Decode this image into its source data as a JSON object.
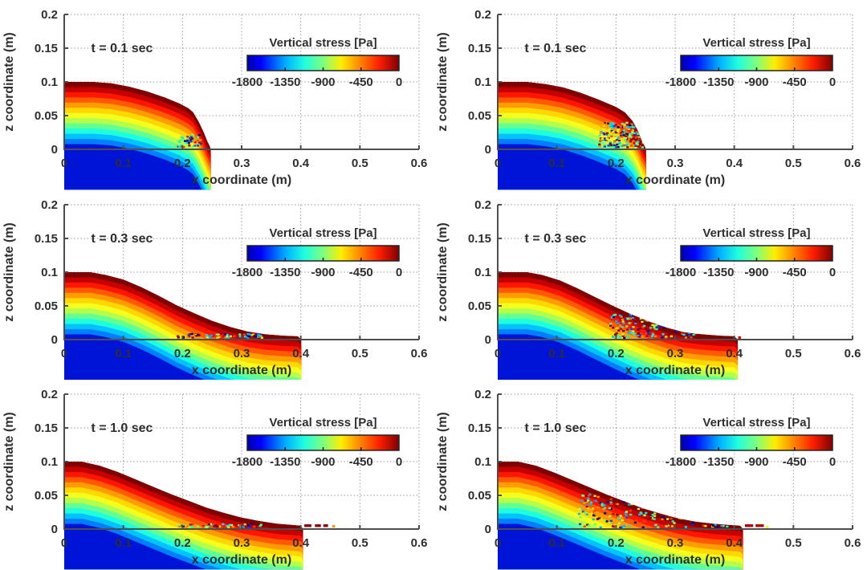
{
  "chart_data": {
    "type": "heatmap",
    "subtype": "sph-granular-collapse-vertical-stress-field",
    "layout": {
      "rows": 3,
      "cols": 2,
      "legend_position": "inside-top-right",
      "grid": "dotted"
    },
    "shared": {
      "xlabel": "x coordinate (m)",
      "ylabel": "z coordinate (m)",
      "xlim": [
        0,
        0.6
      ],
      "ylim": [
        0,
        0.2
      ],
      "xticks": [
        0,
        0.1,
        0.2,
        0.3,
        0.4,
        0.5,
        0.6
      ],
      "xtick_labels": [
        "0",
        "0.1",
        "0.2",
        "0.3",
        "0.4",
        "0.5",
        "0.6"
      ],
      "yticks": [
        0,
        0.05,
        0.1,
        0.15,
        0.2
      ],
      "ytick_labels": [
        "0",
        "0.05",
        "0.1",
        "0.15",
        "0.2"
      ],
      "colorbar": {
        "title": "Vertical stress [Pa]",
        "orientation": "horizontal",
        "colormap": "jet",
        "range_pa": [
          -1800,
          0
        ],
        "ticks": [
          -1800,
          -1350,
          -900,
          -450,
          0
        ],
        "tick_labels": [
          "-1800",
          "-1350",
          "-900",
          "-450",
          "0"
        ],
        "gradient_stops": [
          [
            0,
            "#0000aa"
          ],
          [
            0.09,
            "#0000ff"
          ],
          [
            0.26,
            "#00b4ff"
          ],
          [
            0.38,
            "#22ffdd"
          ],
          [
            0.5,
            "#7dff7d"
          ],
          [
            0.62,
            "#ffee00"
          ],
          [
            0.74,
            "#ff8800"
          ],
          [
            0.87,
            "#ff1e00"
          ],
          [
            1,
            "#7f0000"
          ]
        ]
      },
      "initial_pile_height_m": 0.1,
      "band_depth_m": 0.00769,
      "band_colors_surface_to_deep": [
        "#7f0000",
        "#c40000",
        "#ff1600",
        "#ff5a00",
        "#ff9c00",
        "#ffd800",
        "#f4ff1e",
        "#b4ff4b",
        "#64ff93",
        "#1effde",
        "#00c3ff",
        "#007eff",
        "#0014d8"
      ],
      "speckle_palette": [
        "#000090",
        "#0040ff",
        "#00b4ff",
        "#00ffd0",
        "#55ff7f",
        "#c8ff32",
        "#ffe800",
        "#ff9000",
        "#ff3c00",
        "#c00000",
        "#7f0000",
        "#00e8ff"
      ],
      "grid_color": "#9a9a9a",
      "axis_color": "#4d4d4d",
      "text_color": "#2e2e2e"
    },
    "panels": [
      {
        "id": "top-left",
        "row": 0,
        "col": 0,
        "time_label": "t = 0.1 sec",
        "time_s": 0.1,
        "surface_profile_m": [
          [
            0,
            0.1
          ],
          [
            0.05,
            0.1
          ],
          [
            0.08,
            0.098
          ],
          [
            0.11,
            0.093
          ],
          [
            0.14,
            0.086
          ],
          [
            0.17,
            0.077
          ],
          [
            0.195,
            0.068
          ],
          [
            0.21,
            0.061
          ],
          [
            0.218,
            0.055
          ],
          [
            0.228,
            0.04
          ],
          [
            0.236,
            0.025
          ],
          [
            0.242,
            0.012
          ],
          [
            0.246,
            0.005
          ],
          [
            0.248,
            0
          ]
        ],
        "runout_toe_m": 0.248,
        "noise": {
          "x0": 0.192,
          "x1": 0.232,
          "z0": 0.001,
          "z1": 0.02,
          "count": 55,
          "seed": 11
        },
        "tail_dashes": [],
        "extra_dots": []
      },
      {
        "id": "top-right",
        "row": 0,
        "col": 1,
        "time_label": "t = 0.1 sec",
        "time_s": 0.1,
        "surface_profile_m": [
          [
            0,
            0.1
          ],
          [
            0.05,
            0.1
          ],
          [
            0.08,
            0.097
          ],
          [
            0.11,
            0.092
          ],
          [
            0.14,
            0.084
          ],
          [
            0.17,
            0.074
          ],
          [
            0.2,
            0.063
          ],
          [
            0.215,
            0.055
          ],
          [
            0.228,
            0.042
          ],
          [
            0.238,
            0.026
          ],
          [
            0.244,
            0.012
          ],
          [
            0.249,
            0.004
          ],
          [
            0.251,
            0
          ]
        ],
        "runout_toe_m": 0.251,
        "noise": {
          "x0": 0.172,
          "x1": 0.247,
          "z0": 0.001,
          "z1": 0.04,
          "count": 200,
          "seed": 22
        },
        "tail_dashes": [],
        "extra_dots": []
      },
      {
        "id": "middle-left",
        "row": 1,
        "col": 0,
        "time_label": "t = 0.3 sec",
        "time_s": 0.3,
        "surface_profile_m": [
          [
            0,
            0.1
          ],
          [
            0.045,
            0.1
          ],
          [
            0.07,
            0.096
          ],
          [
            0.1,
            0.089
          ],
          [
            0.13,
            0.078
          ],
          [
            0.16,
            0.065
          ],
          [
            0.19,
            0.051
          ],
          [
            0.22,
            0.039
          ],
          [
            0.25,
            0.028
          ],
          [
            0.28,
            0.019
          ],
          [
            0.31,
            0.012
          ],
          [
            0.34,
            0.008
          ],
          [
            0.37,
            0.006
          ],
          [
            0.395,
            0.005
          ],
          [
            0.401,
            0
          ]
        ],
        "runout_toe_m": 0.401,
        "noise": {
          "x0": 0.19,
          "x1": 0.335,
          "z0": 0.001,
          "z1": 0.007,
          "count": 65,
          "seed": 33
        },
        "tail_dashes": [],
        "extra_dots": []
      },
      {
        "id": "middle-right",
        "row": 1,
        "col": 1,
        "time_label": "t = 0.3 sec",
        "time_s": 0.3,
        "surface_profile_m": [
          [
            0,
            0.1
          ],
          [
            0.05,
            0.1
          ],
          [
            0.075,
            0.096
          ],
          [
            0.105,
            0.088
          ],
          [
            0.135,
            0.076
          ],
          [
            0.165,
            0.063
          ],
          [
            0.195,
            0.05
          ],
          [
            0.225,
            0.038
          ],
          [
            0.255,
            0.027
          ],
          [
            0.285,
            0.018
          ],
          [
            0.315,
            0.011
          ],
          [
            0.345,
            0.008
          ],
          [
            0.375,
            0.006
          ],
          [
            0.4,
            0.005
          ],
          [
            0.406,
            0
          ]
        ],
        "runout_toe_m": 0.406,
        "noise": {
          "x0": 0.19,
          "x1": 0.335,
          "z0": 0.001,
          "z1": 0.036,
          "count": 210,
          "seed": 44
        },
        "tail_dashes": [],
        "extra_dots": [
          [
            0.409,
            0.003,
            "#cc1100"
          ]
        ]
      },
      {
        "id": "bottom-left",
        "row": 2,
        "col": 0,
        "time_label": "t = 1.0 sec",
        "time_s": 1.0,
        "surface_profile_m": [
          [
            0,
            0.1
          ],
          [
            0.03,
            0.1
          ],
          [
            0.06,
            0.094
          ],
          [
            0.09,
            0.085
          ],
          [
            0.12,
            0.074
          ],
          [
            0.15,
            0.063
          ],
          [
            0.18,
            0.052
          ],
          [
            0.21,
            0.042
          ],
          [
            0.24,
            0.032
          ],
          [
            0.27,
            0.024
          ],
          [
            0.3,
            0.017
          ],
          [
            0.33,
            0.012
          ],
          [
            0.36,
            0.008
          ],
          [
            0.39,
            0.006
          ],
          [
            0.4,
            0.005
          ],
          [
            0.404,
            0
          ]
        ],
        "runout_toe_m": 0.455,
        "noise": {
          "x0": 0.19,
          "x1": 0.335,
          "z0": 0.001,
          "z1": 0.006,
          "count": 55,
          "seed": 55
        },
        "tail_dashes": [
          [
            0.406,
            0.418
          ],
          [
            0.424,
            0.434
          ],
          [
            0.438,
            0.446
          ]
        ],
        "tail_color": "#8b0000",
        "extra_dots": [
          [
            0.4555,
            0.004,
            "#ff9000"
          ]
        ]
      },
      {
        "id": "bottom-right",
        "row": 2,
        "col": 1,
        "time_label": "t = 1.0 sec",
        "time_s": 1.0,
        "surface_profile_m": [
          [
            0,
            0.1
          ],
          [
            0.035,
            0.1
          ],
          [
            0.065,
            0.094
          ],
          [
            0.095,
            0.084
          ],
          [
            0.125,
            0.073
          ],
          [
            0.155,
            0.062
          ],
          [
            0.185,
            0.051
          ],
          [
            0.215,
            0.041
          ],
          [
            0.245,
            0.031
          ],
          [
            0.275,
            0.023
          ],
          [
            0.305,
            0.016
          ],
          [
            0.335,
            0.011
          ],
          [
            0.365,
            0.008
          ],
          [
            0.395,
            0.006
          ],
          [
            0.41,
            0.005
          ],
          [
            0.415,
            0
          ]
        ],
        "runout_toe_m": 0.455,
        "noise": {
          "x0": 0.135,
          "x1": 0.405,
          "z0": 0.001,
          "z1": 0.05,
          "count": 280,
          "seed": 66
        },
        "tail_dashes": [
          [
            0.418,
            0.432
          ],
          [
            0.436,
            0.45
          ]
        ],
        "tail_color": "#b00000",
        "extra_dots": [
          [
            0.4555,
            0.003,
            "#e0ff20"
          ]
        ]
      }
    ]
  }
}
